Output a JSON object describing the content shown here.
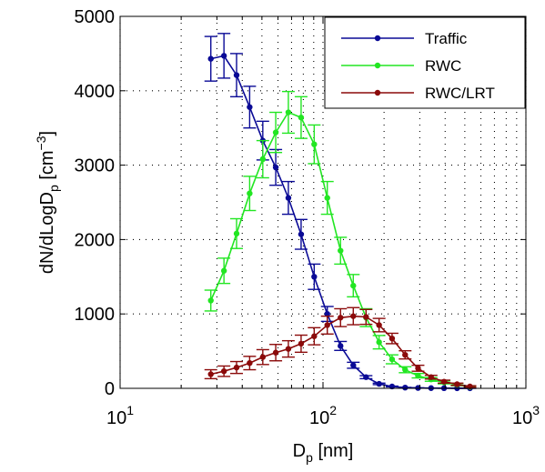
{
  "chart_data": {
    "type": "line",
    "xscale": "log",
    "xlim": [
      10,
      1000
    ],
    "ylim": [
      0,
      5000
    ],
    "xticks": [
      {
        "value": 10,
        "base": "10",
        "exp": "1"
      },
      {
        "value": 100,
        "base": "10",
        "exp": "2"
      },
      {
        "value": 1000,
        "base": "10",
        "exp": "3"
      }
    ],
    "yticks": [
      {
        "value": 0,
        "label": "0"
      },
      {
        "value": 1000,
        "label": "1000"
      },
      {
        "value": 2000,
        "label": "2000"
      },
      {
        "value": 3000,
        "label": "3000"
      },
      {
        "value": 4000,
        "label": "4000"
      },
      {
        "value": 5000,
        "label": "5000"
      }
    ],
    "xlabel": {
      "main": "D",
      "sub": "p",
      "rest": " [nm]"
    },
    "ylabel": {
      "main": "dN/dLogD",
      "sub": "p",
      "mid": " [cm",
      "sup": "−3",
      "end": "]"
    },
    "grid": "dotted",
    "legend_position": "top-right",
    "series": [
      {
        "name": "Traffic",
        "color": "#0a0a96",
        "points": [
          {
            "x": 28.0,
            "y": 4430,
            "err": 300
          },
          {
            "x": 32.5,
            "y": 4470,
            "err": 300
          },
          {
            "x": 37.5,
            "y": 4210,
            "err": 290
          },
          {
            "x": 43.5,
            "y": 3780,
            "err": 280
          },
          {
            "x": 50.5,
            "y": 3330,
            "err": 260
          },
          {
            "x": 58.5,
            "y": 2970,
            "err": 240
          },
          {
            "x": 67.5,
            "y": 2560,
            "err": 220
          },
          {
            "x": 78.0,
            "y": 2070,
            "err": 200
          },
          {
            "x": 90.5,
            "y": 1500,
            "err": 170
          },
          {
            "x": 105,
            "y": 1000,
            "err": 100
          },
          {
            "x": 122,
            "y": 570,
            "err": 60
          },
          {
            "x": 141,
            "y": 310,
            "err": 40
          },
          {
            "x": 163,
            "y": 150,
            "err": 20
          },
          {
            "x": 189,
            "y": 60,
            "err": 10
          },
          {
            "x": 219,
            "y": 25,
            "err": 5
          },
          {
            "x": 254,
            "y": 10,
            "err": 3
          },
          {
            "x": 294,
            "y": 5,
            "err": 2
          },
          {
            "x": 341,
            "y": 3,
            "err": 1
          },
          {
            "x": 395,
            "y": 2,
            "err": 1
          },
          {
            "x": 458,
            "y": 1,
            "err": 1
          },
          {
            "x": 530,
            "y": 1,
            "err": 1
          }
        ]
      },
      {
        "name": "RWC",
        "color": "#22e622",
        "points": [
          {
            "x": 28.0,
            "y": 1180,
            "err": 140
          },
          {
            "x": 32.5,
            "y": 1580,
            "err": 170
          },
          {
            "x": 37.5,
            "y": 2080,
            "err": 200
          },
          {
            "x": 43.5,
            "y": 2620,
            "err": 230
          },
          {
            "x": 50.5,
            "y": 3080,
            "err": 250
          },
          {
            "x": 58.5,
            "y": 3440,
            "err": 270
          },
          {
            "x": 67.5,
            "y": 3710,
            "err": 280
          },
          {
            "x": 78.0,
            "y": 3640,
            "err": 280
          },
          {
            "x": 90.5,
            "y": 3280,
            "err": 260
          },
          {
            "x": 105,
            "y": 2560,
            "err": 220
          },
          {
            "x": 122,
            "y": 1850,
            "err": 180
          },
          {
            "x": 141,
            "y": 1380,
            "err": 150
          },
          {
            "x": 163,
            "y": 950,
            "err": 120
          },
          {
            "x": 189,
            "y": 620,
            "err": 90
          },
          {
            "x": 219,
            "y": 390,
            "err": 60
          },
          {
            "x": 254,
            "y": 250,
            "err": 40
          },
          {
            "x": 294,
            "y": 170,
            "err": 30
          },
          {
            "x": 341,
            "y": 120,
            "err": 25
          },
          {
            "x": 395,
            "y": 80,
            "err": 20
          },
          {
            "x": 458,
            "y": 50,
            "err": 15
          },
          {
            "x": 530,
            "y": 20,
            "err": 10
          }
        ]
      },
      {
        "name": "RWC/LRT",
        "color": "#8b0a0a",
        "points": [
          {
            "x": 28.0,
            "y": 190,
            "err": 60
          },
          {
            "x": 32.5,
            "y": 230,
            "err": 70
          },
          {
            "x": 37.5,
            "y": 280,
            "err": 80
          },
          {
            "x": 43.5,
            "y": 340,
            "err": 90
          },
          {
            "x": 50.5,
            "y": 420,
            "err": 100
          },
          {
            "x": 58.5,
            "y": 480,
            "err": 110
          },
          {
            "x": 67.5,
            "y": 530,
            "err": 110
          },
          {
            "x": 78.0,
            "y": 600,
            "err": 115
          },
          {
            "x": 90.5,
            "y": 700,
            "err": 115
          },
          {
            "x": 105,
            "y": 850,
            "err": 120
          },
          {
            "x": 122,
            "y": 950,
            "err": 120
          },
          {
            "x": 141,
            "y": 970,
            "err": 115
          },
          {
            "x": 163,
            "y": 960,
            "err": 100
          },
          {
            "x": 189,
            "y": 850,
            "err": 90
          },
          {
            "x": 219,
            "y": 670,
            "err": 70
          },
          {
            "x": 254,
            "y": 450,
            "err": 55
          },
          {
            "x": 294,
            "y": 270,
            "err": 40
          },
          {
            "x": 341,
            "y": 150,
            "err": 25
          },
          {
            "x": 395,
            "y": 90,
            "err": 20
          },
          {
            "x": 458,
            "y": 55,
            "err": 15
          },
          {
            "x": 530,
            "y": 25,
            "err": 10
          }
        ]
      }
    ]
  }
}
